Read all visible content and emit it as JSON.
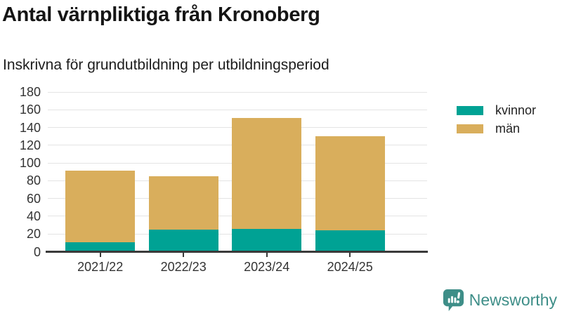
{
  "header": {
    "title": "Antal värnpliktiga från Kronoberg",
    "subtitle": "Inskrivna för grundutbildning per utbildningsperiod"
  },
  "chart_data": {
    "type": "bar",
    "stacked": true,
    "categories": [
      "2021/22",
      "2022/23",
      "2023/24",
      "2024/25"
    ],
    "series": [
      {
        "name": "kvinnor",
        "color": "#00a294",
        "values": [
          11,
          25,
          26,
          24
        ]
      },
      {
        "name": "män",
        "color": "#d9ae5c",
        "values": [
          80,
          60,
          125,
          106
        ]
      }
    ],
    "totals": [
      91,
      85,
      151,
      130
    ],
    "title": "Antal värnpliktiga från Kronoberg",
    "subtitle": "Inskrivna för grundutbildning per utbildningsperiod",
    "xlabel": "",
    "ylabel": "",
    "ylim": [
      0,
      180
    ],
    "ytick_step": 20,
    "grid": true,
    "legend_position": "right"
  },
  "colors": {
    "grid": "#e4e4e4",
    "axis": "#3a3a3a",
    "text": "#333333"
  },
  "footer": {
    "brand": "Newsworthy",
    "brand_color": "#3e8e88"
  }
}
